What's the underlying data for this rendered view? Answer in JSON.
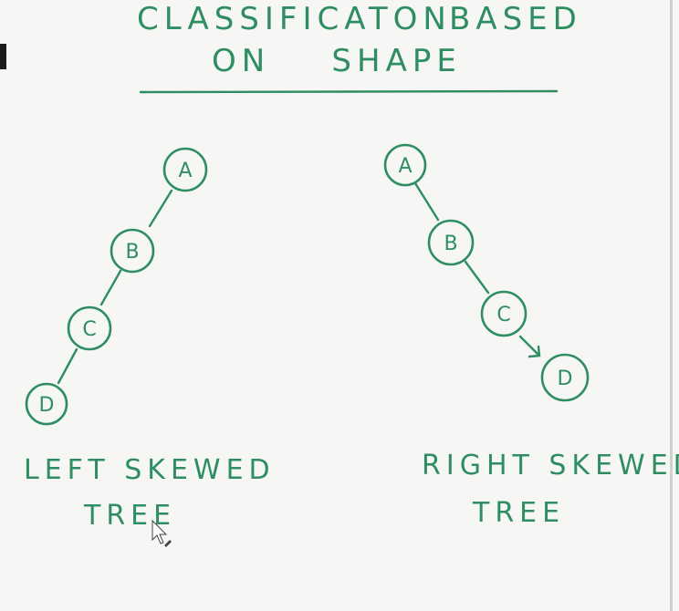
{
  "title": {
    "line1_left": "CLASSIFICATON",
    "line1_right": "BASED",
    "line2": "ON    SHAPE"
  },
  "left_tree": {
    "nodes": [
      "A",
      "B",
      "C",
      "D"
    ],
    "caption_line1": "LEFT SKEWED",
    "caption_line2": "TREE"
  },
  "right_tree": {
    "nodes": [
      "A",
      "B",
      "C",
      "D"
    ],
    "caption_line1": "RIGHT SKEWED",
    "caption_line2": "TREE"
  },
  "colors": {
    "ink": "#2f8d62",
    "background": "#f6f7f5"
  }
}
